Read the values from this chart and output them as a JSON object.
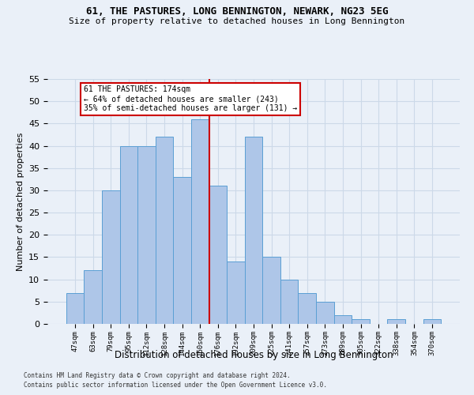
{
  "title1": "61, THE PASTURES, LONG BENNINGTON, NEWARK, NG23 5EG",
  "title2": "Size of property relative to detached houses in Long Bennington",
  "xlabel": "Distribution of detached houses by size in Long Bennington",
  "ylabel": "Number of detached properties",
  "footnote1": "Contains HM Land Registry data © Crown copyright and database right 2024.",
  "footnote2": "Contains public sector information licensed under the Open Government Licence v3.0.",
  "bar_labels": [
    "47sqm",
    "63sqm",
    "79sqm",
    "95sqm",
    "112sqm",
    "128sqm",
    "144sqm",
    "160sqm",
    "176sqm",
    "192sqm",
    "209sqm",
    "225sqm",
    "241sqm",
    "257sqm",
    "273sqm",
    "289sqm",
    "305sqm",
    "322sqm",
    "338sqm",
    "354sqm",
    "370sqm"
  ],
  "bar_values": [
    7,
    12,
    30,
    40,
    40,
    42,
    33,
    46,
    31,
    14,
    42,
    15,
    10,
    7,
    5,
    2,
    1,
    0,
    1,
    0,
    1
  ],
  "bar_color": "#aec6e8",
  "bar_edge_color": "#5a9fd4",
  "grid_color": "#ccd9e8",
  "background_color": "#eaf0f8",
  "vline_color": "#cc0000",
  "annotation_text": "61 THE PASTURES: 174sqm\n← 64% of detached houses are smaller (243)\n35% of semi-detached houses are larger (131) →",
  "annotation_box_color": "#ffffff",
  "annotation_box_edge": "#cc0000",
  "ylim": [
    0,
    55
  ],
  "yticks": [
    0,
    5,
    10,
    15,
    20,
    25,
    30,
    35,
    40,
    45,
    50,
    55
  ]
}
